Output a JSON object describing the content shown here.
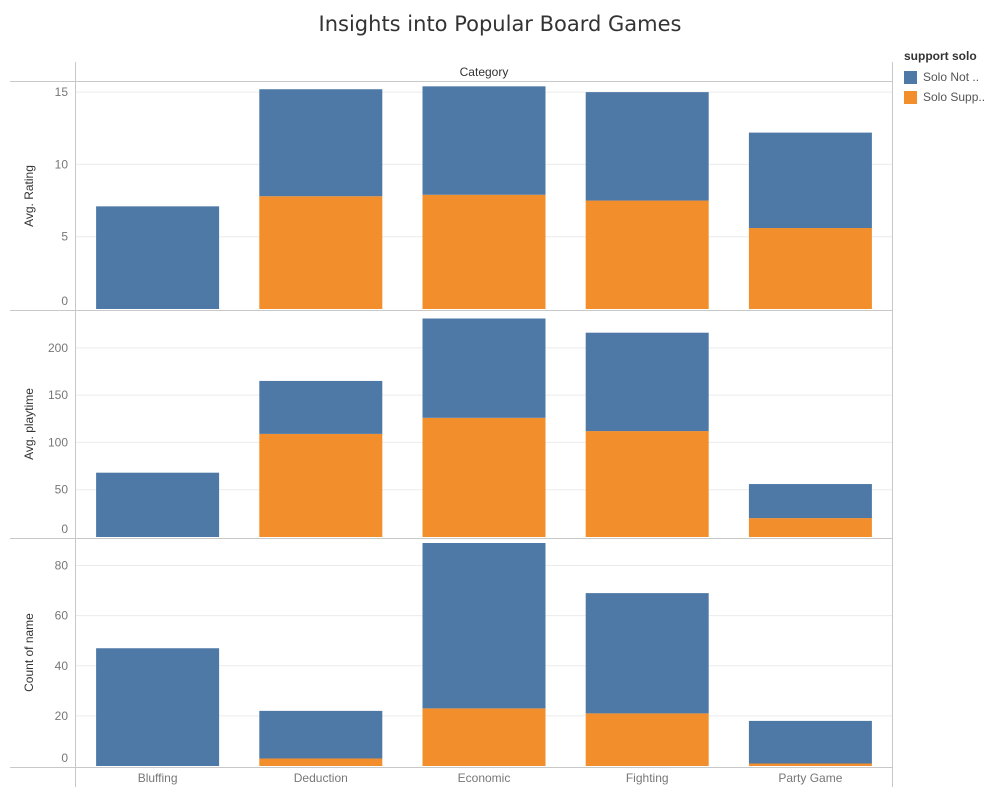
{
  "chart_data": {
    "type": "bar",
    "stacked": true,
    "title": "Insights into Popular Board Games",
    "column_header": "Category",
    "categories": [
      "Bluffing",
      "Deduction",
      "Economic",
      "Fighting",
      "Party Game"
    ],
    "legend": {
      "title": "support solo",
      "placement": "top-right",
      "entries": [
        {
          "label": "Solo Not ..",
          "color": "#4e79a7"
        },
        {
          "label": "Solo Supp..",
          "color": "#f28e2b"
        }
      ]
    },
    "panels": [
      {
        "ylabel": "Avg. Rating",
        "ylim": [
          0,
          15.7
        ],
        "yticks": [
          "0",
          "5",
          "10",
          "15"
        ],
        "series": [
          {
            "name": "Solo Supp..",
            "values": [
              0,
              7.8,
              7.9,
              7.5,
              5.6
            ]
          },
          {
            "name": "Solo Not ..",
            "values": [
              7.1,
              7.4,
              7.5,
              7.5,
              6.6
            ]
          }
        ]
      },
      {
        "ylabel": "Avg. playtime",
        "ylim": [
          0,
          240
        ],
        "yticks": [
          "0",
          "50",
          "100",
          "150",
          "200"
        ],
        "series": [
          {
            "name": "Solo Supp..",
            "values": [
              0,
              109,
              126,
              112,
              20
            ]
          },
          {
            "name": "Solo Not ..",
            "values": [
              68,
              56,
              105,
              104,
              36
            ]
          }
        ]
      },
      {
        "ylabel": "Count of name",
        "ylim": [
          0,
          91
        ],
        "yticks": [
          "0",
          "20",
          "40",
          "60",
          "80"
        ],
        "series": [
          {
            "name": "Solo Supp..",
            "values": [
              0,
              3,
              23,
              21,
              1
            ]
          },
          {
            "name": "Solo Not ..",
            "values": [
              47,
              19,
              66,
              48,
              17
            ]
          }
        ]
      }
    ],
    "grid": true
  }
}
